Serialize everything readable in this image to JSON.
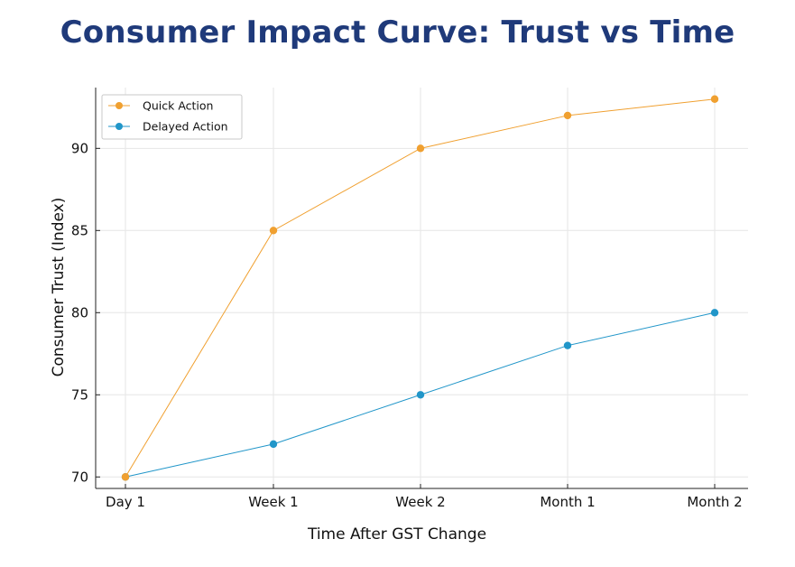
{
  "chart_data": {
    "type": "line",
    "title": "Consumer Impact Curve: Trust vs Time",
    "xlabel": "Time After GST Change",
    "ylabel": "Consumer Trust (Index)",
    "categories": [
      "Day 1",
      "Week 1",
      "Week 2",
      "Month 1",
      "Month 2"
    ],
    "series": [
      {
        "name": "Quick Action",
        "color": "#f0a030",
        "values": [
          70,
          85,
          90,
          92,
          93
        ]
      },
      {
        "name": "Delayed Action",
        "color": "#2196c9",
        "values": [
          70,
          72,
          75,
          78,
          80
        ]
      }
    ],
    "ylim": [
      69.3,
      93.7
    ],
    "yticks": [
      70,
      75,
      80,
      85,
      90
    ],
    "grid": true,
    "legend_position": "top-left"
  }
}
